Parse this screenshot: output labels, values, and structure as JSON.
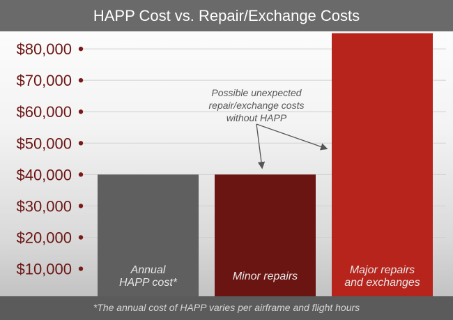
{
  "chart_data": {
    "type": "bar",
    "title": "HAPP Cost vs. Repair/Exchange Costs",
    "categories": [
      [
        "Annual",
        "HAPP cost*"
      ],
      [
        "Minor repairs"
      ],
      [
        "Major repairs",
        "and exchanges"
      ]
    ],
    "values": [
      40000,
      40000,
      85000
    ],
    "colors": [
      "#5f5f5f",
      "#6b1512",
      "#b6241c"
    ],
    "ylim": [
      0,
      85000
    ],
    "yticks": [
      10000,
      20000,
      30000,
      40000,
      50000,
      60000,
      70000,
      80000
    ],
    "ytick_labels": [
      "$10,000",
      "$20,000",
      "$30,000",
      "$40,000",
      "$50,000",
      "$60,000",
      "$70,000",
      "$80,000"
    ],
    "grid": true,
    "annotation": [
      "Possible unexpected",
      "repair/exchange costs",
      "without HAPP"
    ],
    "footnote": "*The annual cost of HAPP varies per airframe and flight hours"
  },
  "colors": {
    "tick_text": "#6b1512",
    "tick_dot": "#7a1a16",
    "grid": "#d0d0d0"
  }
}
